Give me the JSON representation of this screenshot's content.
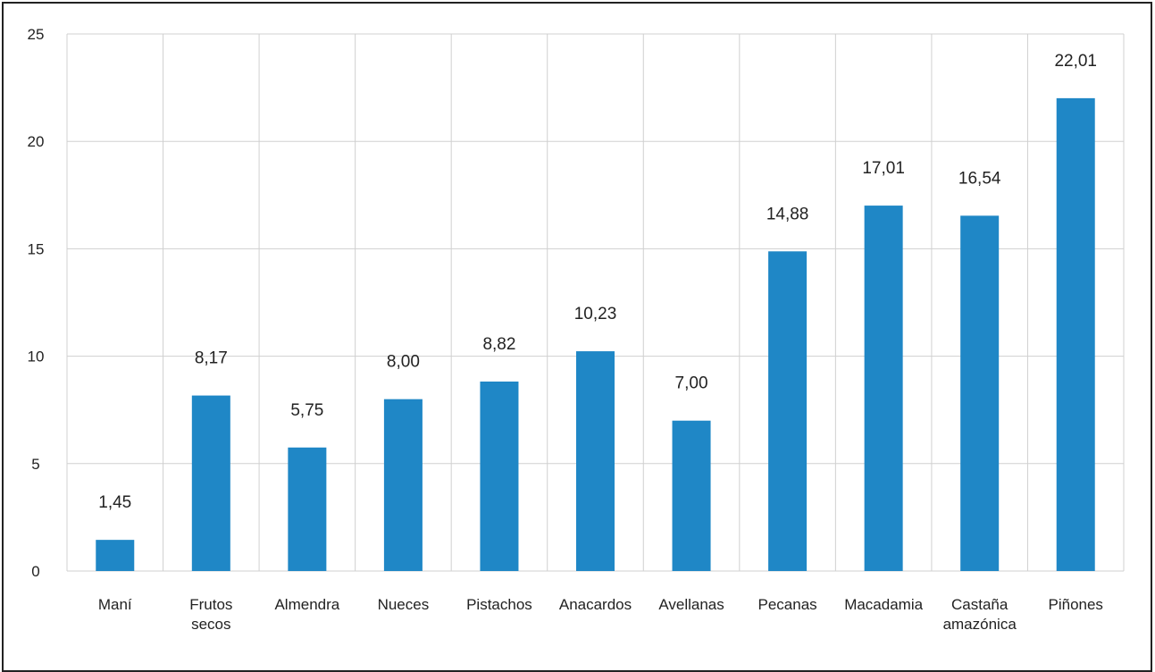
{
  "chart_data": {
    "type": "bar",
    "categories": [
      [
        "Maní"
      ],
      [
        "Frutos",
        "secos"
      ],
      [
        "Almendra"
      ],
      [
        "Nueces"
      ],
      [
        "Pistachos"
      ],
      [
        "Anacardos"
      ],
      [
        "Avellanas"
      ],
      [
        "Pecanas"
      ],
      [
        "Macadamia"
      ],
      [
        "Castaña",
        "amazónica"
      ],
      [
        "Piñones"
      ]
    ],
    "values": [
      1.45,
      8.17,
      5.75,
      8.0,
      8.82,
      10.23,
      7.0,
      14.88,
      17.01,
      16.54,
      22.01
    ],
    "data_labels": [
      "1,45",
      "8,17",
      "5,75",
      "8,00",
      "8,82",
      "10,23",
      "7,00",
      "14,88",
      "17,01",
      "16,54",
      "22,01"
    ],
    "yticks": [
      0,
      5,
      10,
      15,
      20,
      25
    ],
    "ylim": [
      0,
      25
    ],
    "title": "",
    "xlabel": "",
    "ylabel": "",
    "grid": "both",
    "bar_color": "#1f87c6",
    "grid_color": "#d0d0d0"
  }
}
